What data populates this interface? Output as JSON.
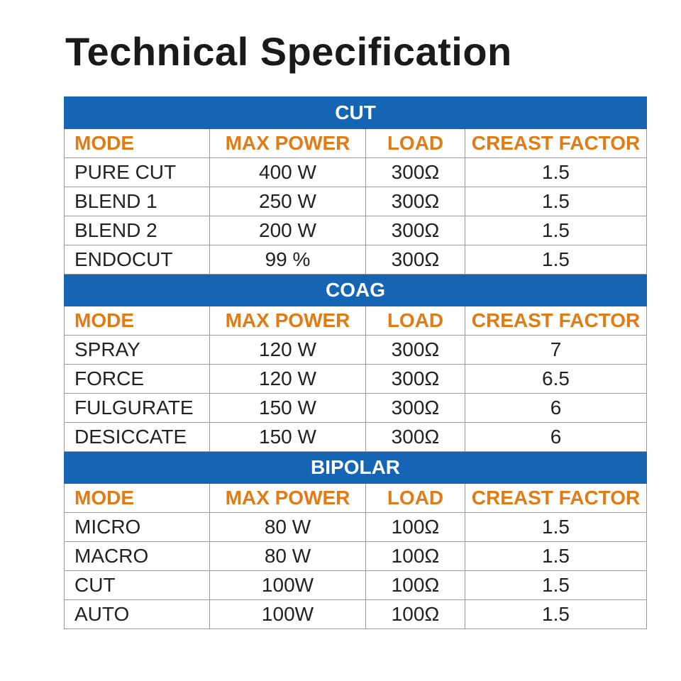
{
  "title": "Technical Specification",
  "colors": {
    "section_bg": "#1565b4",
    "header_text": "#e07b16",
    "body_text": "#222222"
  },
  "sections": [
    {
      "name": "CUT",
      "headers": [
        "MODE",
        "MAX POWER",
        "LOAD",
        "CREAST FACTOR"
      ],
      "rows": [
        [
          "PURE CUT",
          "400 W",
          "300Ω",
          "1.5"
        ],
        [
          "BLEND 1",
          "250 W",
          "300Ω",
          "1.5"
        ],
        [
          "BLEND 2",
          "200 W",
          "300Ω",
          "1.5"
        ],
        [
          "ENDOCUT",
          "99 %",
          "300Ω",
          "1.5"
        ]
      ]
    },
    {
      "name": "COAG",
      "headers": [
        "MODE",
        "MAX POWER",
        "LOAD",
        "CREAST FACTOR"
      ],
      "rows": [
        [
          "SPRAY",
          "120 W",
          "300Ω",
          "7"
        ],
        [
          "FORCE",
          "120 W",
          "300Ω",
          "6.5"
        ],
        [
          "FULGURATE",
          "150 W",
          "300Ω",
          "6"
        ],
        [
          "DESICCATE",
          "150 W",
          "300Ω",
          "6"
        ]
      ]
    },
    {
      "name": "BIPOLAR",
      "headers": [
        "MODE",
        "MAX POWER",
        "LOAD",
        "CREAST FACTOR"
      ],
      "rows": [
        [
          "MICRO",
          "80 W",
          "100Ω",
          "1.5"
        ],
        [
          "MACRO",
          "80 W",
          "100Ω",
          "1.5"
        ],
        [
          "CUT",
          "100W",
          "100Ω",
          "1.5"
        ],
        [
          "AUTO",
          "100W",
          "100Ω",
          "1.5"
        ]
      ]
    }
  ]
}
